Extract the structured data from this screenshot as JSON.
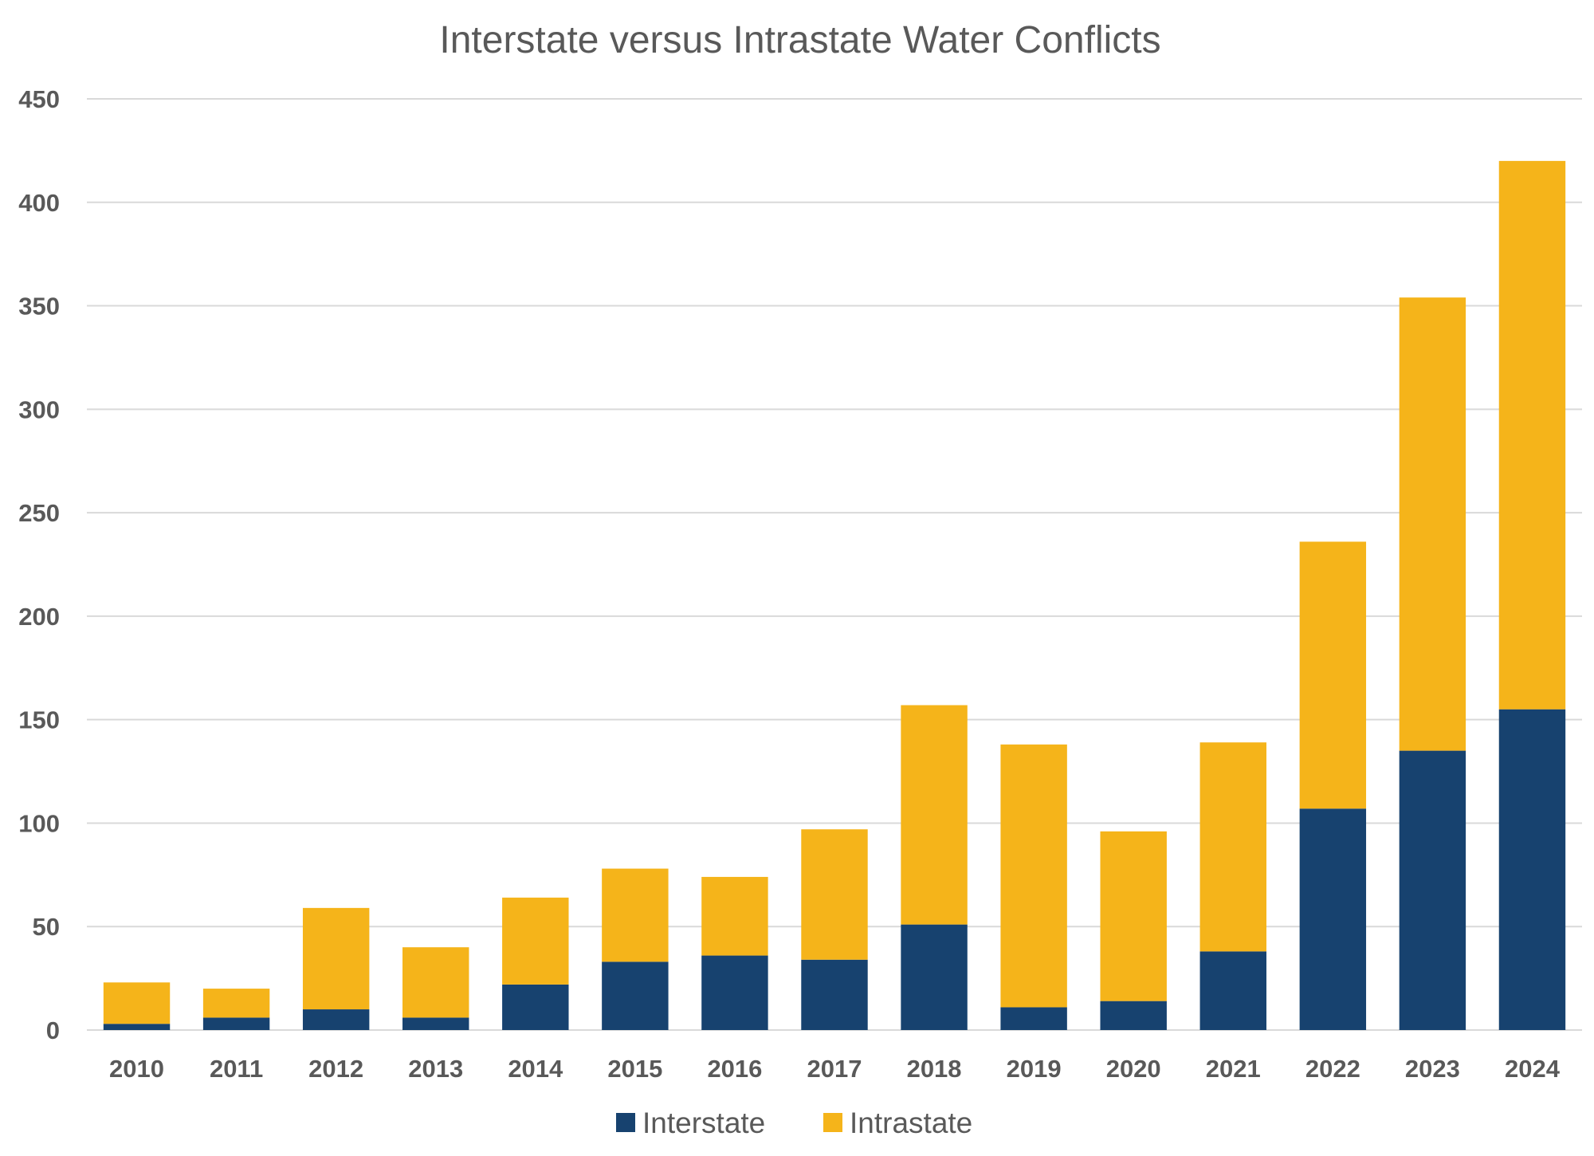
{
  "chart_data": {
    "type": "bar",
    "stacked": true,
    "title": "Interstate versus Intrastate Water Conflicts",
    "xlabel": "",
    "ylabel": "",
    "ylim": [
      0,
      450
    ],
    "yticks": [
      0,
      50,
      100,
      150,
      200,
      250,
      300,
      350,
      400,
      450
    ],
    "grid": true,
    "legend_position": "bottom",
    "categories": [
      "2010",
      "2011",
      "2012",
      "2013",
      "2014",
      "2015",
      "2016",
      "2017",
      "2018",
      "2019",
      "2020",
      "2021",
      "2022",
      "2023",
      "2024"
    ],
    "series": [
      {
        "name": "Interstate",
        "color": "#17426F",
        "values": [
          3,
          6,
          10,
          6,
          22,
          33,
          36,
          34,
          51,
          11,
          14,
          38,
          107,
          135,
          155
        ]
      },
      {
        "name": "Intrastate",
        "color": "#F5B41A",
        "values": [
          20,
          14,
          49,
          34,
          42,
          45,
          38,
          63,
          106,
          127,
          82,
          101,
          129,
          219,
          265
        ]
      }
    ]
  }
}
